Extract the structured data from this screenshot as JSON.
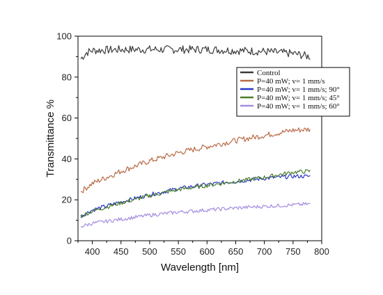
{
  "chart_data": {
    "type": "line",
    "title": "",
    "xlabel": "Wavelength [nm]",
    "ylabel": "Transmittance %",
    "xlim": [
      375,
      800
    ],
    "ylim": [
      0,
      100
    ],
    "x_ticks": [
      400,
      450,
      500,
      550,
      600,
      650,
      700,
      750,
      800
    ],
    "y_ticks": [
      0,
      20,
      40,
      60,
      80,
      100
    ],
    "grid": false,
    "legend_position": "top-right",
    "x_range": [
      380,
      780
    ],
    "series": [
      {
        "name": "Control",
        "color": "#3a3a3a",
        "noise": 2.0,
        "x": [
          380,
          390,
          400,
          450,
          500,
          550,
          600,
          650,
          700,
          750,
          780
        ],
        "values": [
          89,
          92,
          93,
          93.5,
          93.5,
          93.5,
          93.5,
          93,
          92.5,
          91.5,
          90
        ]
      },
      {
        "name": "P=40 mW; v= 1 mm/s",
        "color": "#b86a46",
        "noise": 1.4,
        "x": [
          380,
          400,
          450,
          500,
          550,
          600,
          650,
          700,
          750,
          780
        ],
        "values": [
          24,
          28,
          34,
          39,
          43,
          46,
          49,
          51.5,
          54,
          54.5
        ]
      },
      {
        "name": "P=40 mW; v= 1 mm/s; 90°",
        "color": "#2a35c8",
        "noise": 1.0,
        "x": [
          380,
          400,
          450,
          500,
          550,
          600,
          650,
          700,
          750,
          780
        ],
        "values": [
          12,
          15,
          19,
          22.5,
          25.5,
          27.5,
          29,
          30.5,
          31.5,
          31.5
        ]
      },
      {
        "name": "P=40 mW; v= 1 mm/s; 45°",
        "color": "#4a7d2a",
        "noise": 1.0,
        "x": [
          380,
          400,
          450,
          500,
          550,
          600,
          650,
          700,
          750,
          780
        ],
        "values": [
          12,
          14.5,
          18.5,
          22,
          25,
          27,
          29,
          31,
          33.5,
          34
        ]
      },
      {
        "name": "P=40 mW; v= 1 mm/s; 60°",
        "color": "#a48de0",
        "noise": 0.9,
        "x": [
          380,
          400,
          450,
          500,
          550,
          600,
          650,
          700,
          750,
          780
        ],
        "values": [
          7,
          8.5,
          10.5,
          12.5,
          14,
          15,
          16,
          16.8,
          17.5,
          18
        ]
      }
    ]
  }
}
